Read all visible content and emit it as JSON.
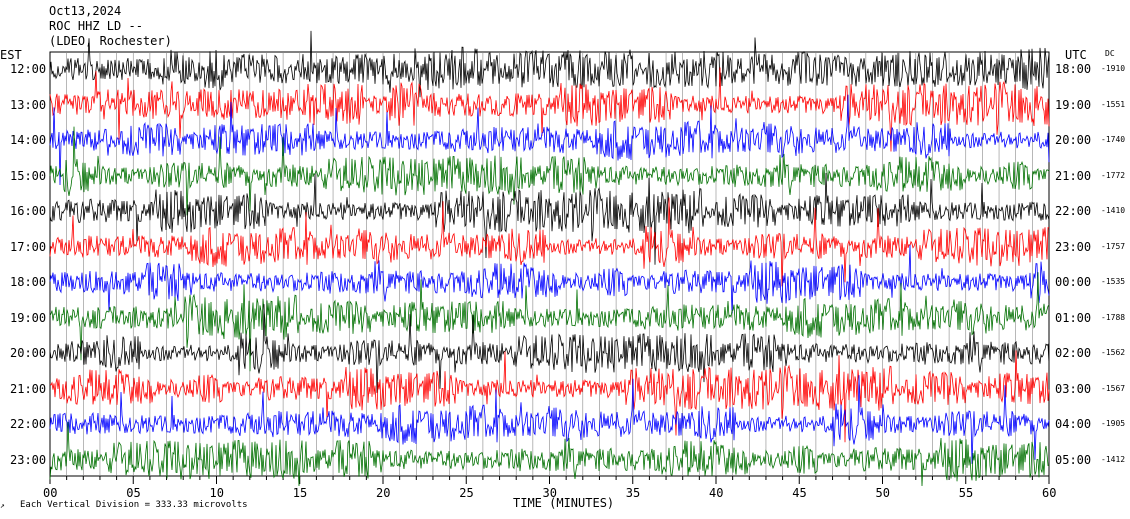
{
  "header": {
    "date": "Oct13,2024",
    "station": "ROC HHZ LD --",
    "network": "(LDEO, Rochester)"
  },
  "left_tz": "EST",
  "right_tz": "UTC",
  "dc_title": "DC",
  "xlabel": "TIME (MINUTES)",
  "footer": "Each Vertical Division = 333.33 microvolts",
  "colors": {
    "cycle": [
      "#000000",
      "#ff0000",
      "#0000ff",
      "#007000"
    ]
  },
  "chart_data": {
    "type": "line",
    "title": "",
    "xlabel": "TIME (MINUTES)",
    "xlim": [
      0,
      60
    ],
    "x_ticks": [
      "00",
      "05",
      "10",
      "15",
      "20",
      "25",
      "30",
      "35",
      "40",
      "45",
      "50",
      "55",
      "60"
    ],
    "rows": [
      {
        "local": "12:00",
        "utc": "18:00",
        "dc": "-1910"
      },
      {
        "local": "13:00",
        "utc": "19:00",
        "dc": "-1551"
      },
      {
        "local": "14:00",
        "utc": "20:00",
        "dc": "-1740"
      },
      {
        "local": "15:00",
        "utc": "21:00",
        "dc": "-1772"
      },
      {
        "local": "16:00",
        "utc": "22:00",
        "dc": "-1410"
      },
      {
        "local": "17:00",
        "utc": "23:00",
        "dc": "-1757"
      },
      {
        "local": "18:00",
        "utc": "00:00",
        "dc": "-1535"
      },
      {
        "local": "19:00",
        "utc": "01:00",
        "dc": "-1788"
      },
      {
        "local": "20:00",
        "utc": "02:00",
        "dc": "-1562"
      },
      {
        "local": "21:00",
        "utc": "03:00",
        "dc": "-1567"
      },
      {
        "local": "22:00",
        "utc": "04:00",
        "dc": "-1905"
      },
      {
        "local": "23:00",
        "utc": "05:00",
        "dc": "-1412"
      }
    ]
  }
}
